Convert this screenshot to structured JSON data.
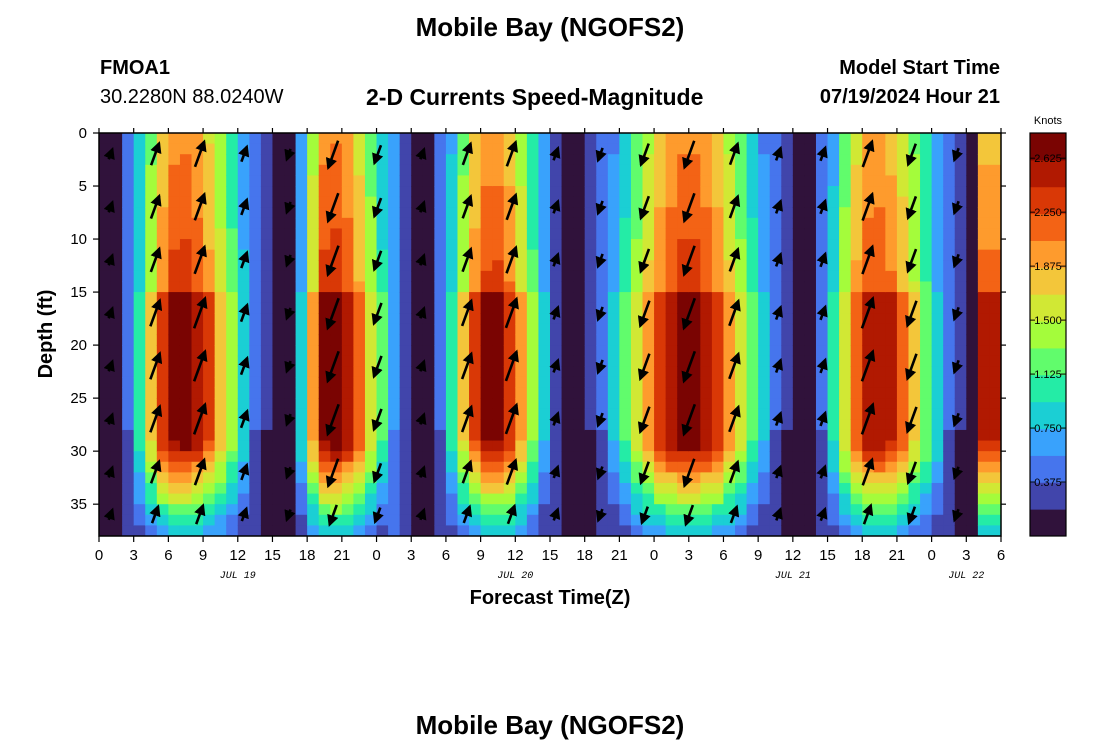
{
  "page": {
    "title": "Mobile Bay (NGOFS2)",
    "footer_title": "Mobile Bay (NGOFS2)"
  },
  "header": {
    "station_id": "FMOA1",
    "station_coords": "30.2280N  88.0240W",
    "model_start_label": "Model Start Time",
    "model_start_value": "07/19/2024 Hour 21"
  },
  "chart_data": {
    "type": "heatmap",
    "title": "2-D Currents Speed-Magnitude",
    "xlabel": "Forecast Time(Z)",
    "ylabel": "Depth (ft)",
    "x_hours_range": [
      0,
      78
    ],
    "x_tick_labels": [
      "0",
      "3",
      "6",
      "9",
      "12",
      "15",
      "18",
      "21",
      "0",
      "3",
      "6",
      "9",
      "12",
      "15",
      "18",
      "21",
      "0",
      "3",
      "6",
      "9",
      "12",
      "15",
      "18",
      "21",
      "0",
      "3",
      "6"
    ],
    "date_labels": [
      {
        "text": "JUL 19",
        "hour": 12
      },
      {
        "text": "JUL 20",
        "hour": 36
      },
      {
        "text": "JUL 21",
        "hour": 60
      },
      {
        "text": "JUL 22",
        "hour": 75
      }
    ],
    "y_range": [
      0,
      38
    ],
    "y_ticks": [
      0,
      5,
      10,
      15,
      20,
      25,
      30,
      35
    ],
    "colorbar": {
      "label": "Knots",
      "range": [
        0,
        2.8
      ],
      "ticks": [
        "2.625",
        "2.250",
        "1.875",
        "1.500",
        "1.125",
        "0.750",
        "0.375"
      ],
      "colors": [
        "#30123b",
        "#4145ab",
        "#4675ed",
        "#39a2fc",
        "#1bcfd4",
        "#24eca6",
        "#61fc6c",
        "#a4fc3b",
        "#d1e834",
        "#f3c63a",
        "#fe9b2d",
        "#f36315",
        "#d93806",
        "#b11901",
        "#7a0402"
      ]
    },
    "speed_peaks_hours": [
      7,
      20,
      34,
      51,
      67
    ],
    "speed_minima_hours": [
      1,
      16,
      28,
      41,
      61,
      76
    ],
    "vector_direction_by_phase": [
      "north-northeast (flood)",
      "south-southwest (ebb)"
    ]
  }
}
